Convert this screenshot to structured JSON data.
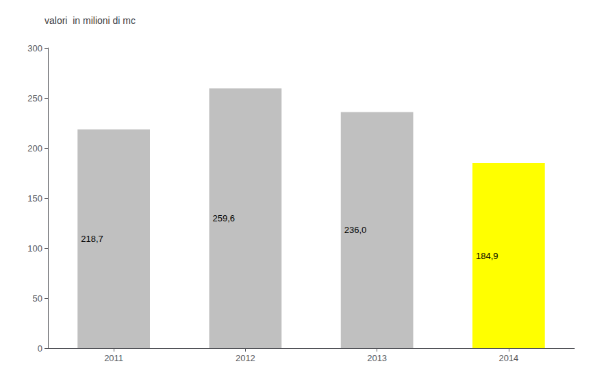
{
  "chart_data": {
    "type": "bar",
    "title": "valori  in milioni di mc",
    "categories": [
      "2011",
      "2012",
      "2013",
      "2014"
    ],
    "values": [
      218.7,
      259.6,
      236.0,
      184.9
    ],
    "value_labels": [
      "218,7",
      "259,6",
      "236,0",
      "184,9"
    ],
    "colors": [
      "#c0c0c0",
      "#c0c0c0",
      "#c0c0c0",
      "#ffff00"
    ],
    "ylim": [
      0,
      300
    ],
    "yticks": [
      0,
      50,
      100,
      150,
      200,
      250,
      300
    ],
    "grid": false,
    "data_labels": true
  }
}
